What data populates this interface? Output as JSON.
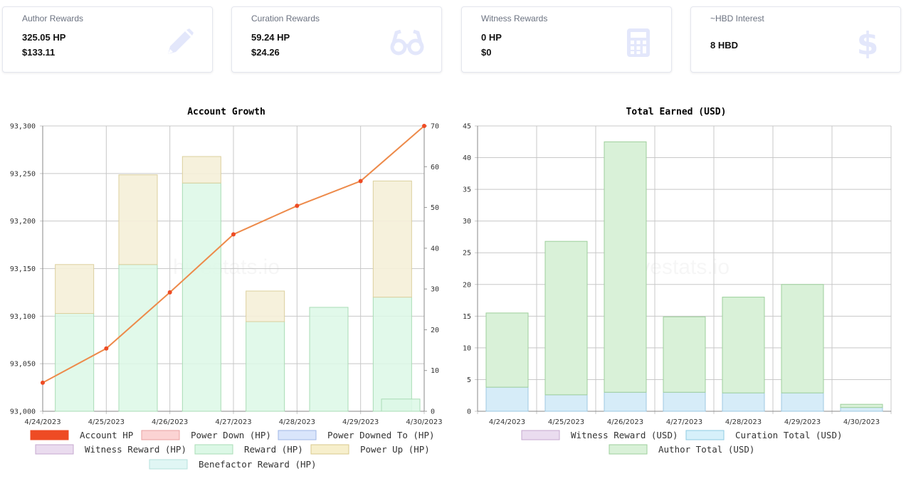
{
  "cards": [
    {
      "title": "Author Rewards",
      "line1": "325.05 HP",
      "line2": "$133.11",
      "icon": "pencil-icon"
    },
    {
      "title": "Curation Rewards",
      "line1": "59.24 HP",
      "line2": "$24.26",
      "icon": "glasses-icon"
    },
    {
      "title": "Witness Rewards",
      "line1": "0 HP",
      "line2": "$0",
      "icon": "calculator-icon"
    },
    {
      "title": "~HBD Interest",
      "line1": "8 HBD",
      "line2": "",
      "icon": "dollar-icon"
    }
  ],
  "watermark": "hivestats.io",
  "colors": {
    "accent_line": "#ed8a4a",
    "account_hp": "#ee4b24",
    "reward_fill": "#dcf8e6",
    "reward_stroke": "#a9dcb5",
    "powerup_fill": "#f5f0d8",
    "powerup_stroke": "#dcd09e",
    "author_fill": "#d9f1d8",
    "author_stroke": "#9dcf9b",
    "curation_fill": "#d6ecf8",
    "curation_stroke": "#9fc8e2",
    "icon_tint": "#e3e7fb"
  },
  "chart_data": [
    {
      "type": "bar",
      "title": "Account Growth",
      "categories": [
        "4/24/2023",
        "4/25/2023",
        "4/26/2023",
        "4/27/2023",
        "4/28/2023",
        "4/29/2023",
        "4/30/2023"
      ],
      "y_left": {
        "ylim": [
          93000,
          93300
        ],
        "ticks": [
          "93,000",
          "93,050",
          "93,100",
          "93,150",
          "93,200",
          "93,250",
          "93,300"
        ]
      },
      "y_right": {
        "ylim": [
          0,
          70
        ],
        "ticks": [
          "0",
          "10",
          "20",
          "30",
          "40",
          "50",
          "60",
          "70"
        ]
      },
      "grid": true,
      "legend_placement": "bottom",
      "line_series": {
        "name": "Account HP",
        "axis": "left",
        "x_positions": [
          0,
          1,
          2,
          3,
          4,
          5,
          6
        ],
        "values": [
          93030,
          93066,
          93125,
          93186,
          93216,
          93242,
          93300
        ]
      },
      "bar_series": [
        {
          "name": "Reward (HP)",
          "axis": "right",
          "values": [
            24,
            36,
            56,
            22,
            25.5,
            28,
            3
          ]
        },
        {
          "name": "Power Up (HP)",
          "axis": "right",
          "stacked_on": "Reward (HP)",
          "values": [
            12,
            22,
            6.5,
            7.5,
            0,
            28.5,
            0
          ]
        }
      ],
      "legend": [
        "Account HP",
        "Power Down (HP)",
        "Power Downed To (HP)",
        "Witness Reward (HP)",
        "Reward (HP)",
        "Power Up (HP)",
        "Benefactor Reward (HP)"
      ]
    },
    {
      "type": "bar",
      "title": "Total Earned (USD)",
      "categories": [
        "4/24/2023",
        "4/25/2023",
        "4/26/2023",
        "4/27/2023",
        "4/28/2023",
        "4/29/2023",
        "4/30/2023"
      ],
      "ylim": [
        0,
        45
      ],
      "ticks": [
        "0",
        "5",
        "10",
        "15",
        "20",
        "25",
        "30",
        "35",
        "40",
        "45"
      ],
      "grid": true,
      "stacked": true,
      "legend_placement": "bottom",
      "series": [
        {
          "name": "Witness Reward (USD)",
          "values": [
            0,
            0,
            0,
            0,
            0,
            0,
            0
          ]
        },
        {
          "name": "Curation Total (USD)",
          "values": [
            3.8,
            2.6,
            3.0,
            3.0,
            2.9,
            2.9,
            0.6
          ]
        },
        {
          "name": "Author Total (USD)",
          "values": [
            11.7,
            24.2,
            39.5,
            11.9,
            15.1,
            17.1,
            0.5
          ]
        }
      ],
      "legend": [
        "Witness Reward (USD)",
        "Curation Total (USD)",
        "Author Total (USD)"
      ]
    }
  ]
}
